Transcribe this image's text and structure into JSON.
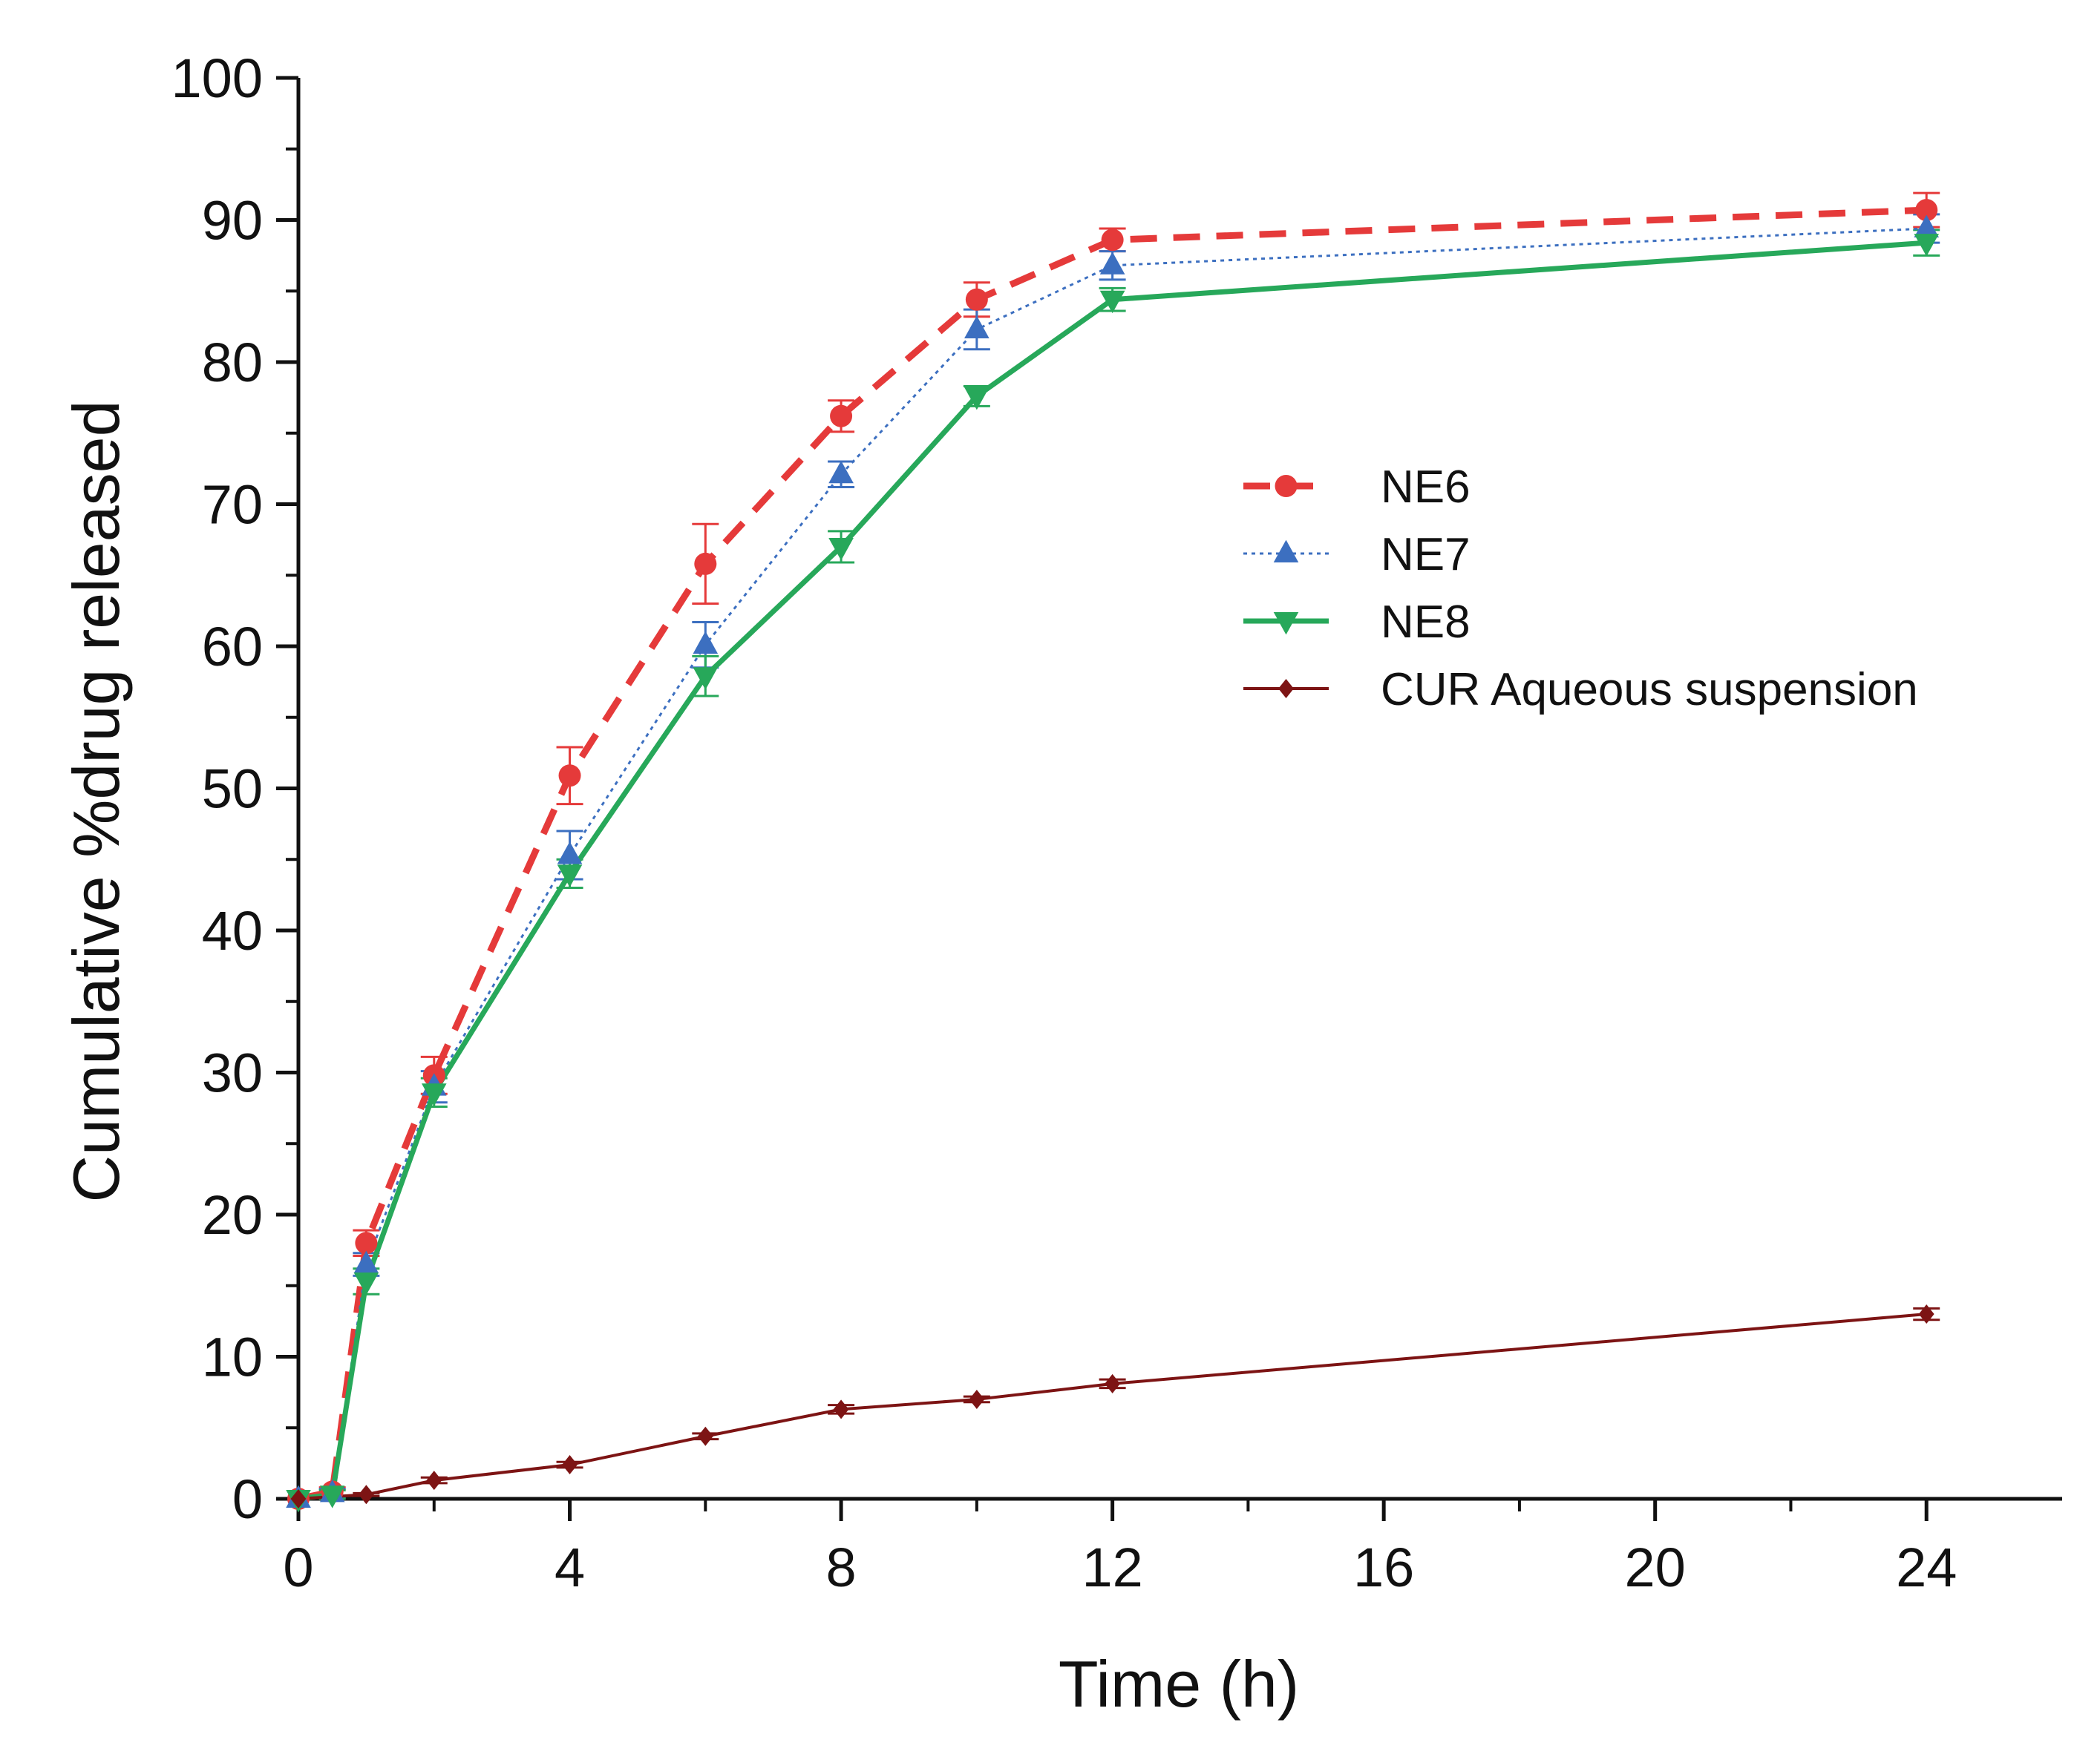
{
  "colors": {
    "NE6": "#e53a3a",
    "NE7": "#3c6fc0",
    "NE8": "#27a85a",
    "CUR": "#7d1414",
    "axis": "#111111"
  },
  "chart_data": {
    "type": "line",
    "title": "",
    "xlabel": "Time (h)",
    "ylabel": "Cumulative %drug released",
    "xlim": [
      0,
      26
    ],
    "ylim": [
      0,
      100
    ],
    "x_ticks": [
      0,
      4,
      8,
      12,
      16,
      20,
      24
    ],
    "x_tick_labels": [
      "0",
      "4",
      "8",
      "12",
      "16",
      "20",
      "24"
    ],
    "x_minor_ticks": [
      2,
      6,
      10,
      14,
      18,
      22
    ],
    "y_ticks": [
      0,
      10,
      20,
      30,
      40,
      50,
      60,
      70,
      80,
      90,
      100
    ],
    "y_tick_labels": [
      "0",
      "10",
      "20",
      "30",
      "40",
      "50",
      "60",
      "70",
      "80",
      "90",
      "100"
    ],
    "y_minor_ticks": [
      5,
      15,
      25,
      35,
      45,
      55,
      65,
      75,
      85,
      95
    ],
    "grid": false,
    "legend_position": "center-right",
    "series": [
      {
        "name": "NE6",
        "x": [
          0,
          0.5,
          1,
          2,
          4,
          6,
          8,
          10,
          12,
          24
        ],
        "values": [
          0,
          0.5,
          18.0,
          29.8,
          50.9,
          65.8,
          76.2,
          84.4,
          88.6,
          90.7
        ],
        "errors": [
          0,
          0.3,
          0.9,
          1.3,
          2.0,
          2.8,
          1.1,
          1.2,
          0.8,
          1.2
        ],
        "marker": "circle",
        "line_style": "dashed"
      },
      {
        "name": "NE7",
        "x": [
          0,
          0.5,
          1,
          2,
          4,
          6,
          8,
          10,
          12,
          24
        ],
        "values": [
          0,
          0.4,
          16.5,
          29.0,
          45.3,
          60.1,
          72.1,
          82.3,
          86.8,
          89.4
        ],
        "errors": [
          0,
          0.3,
          0.8,
          1.1,
          1.7,
          1.6,
          0.9,
          1.4,
          1.0,
          1.0
        ],
        "marker": "triangle-up",
        "line_style": "dotted"
      },
      {
        "name": "NE8",
        "x": [
          0,
          0.5,
          1,
          2,
          4,
          6,
          8,
          10,
          12,
          24
        ],
        "values": [
          0,
          0.3,
          15.3,
          28.6,
          44.0,
          57.9,
          67.0,
          77.6,
          84.4,
          88.4
        ],
        "errors": [
          0,
          0.3,
          0.9,
          1.0,
          1.0,
          1.4,
          1.1,
          0.7,
          0.8,
          0.9
        ],
        "marker": "triangle-down",
        "line_style": "solid"
      },
      {
        "name": "CUR Aqueous suspension",
        "x": [
          0,
          1,
          2,
          4,
          6,
          8,
          10,
          12,
          24
        ],
        "values": [
          0,
          0.3,
          1.3,
          2.4,
          4.4,
          6.3,
          7.0,
          8.1,
          13.0
        ],
        "errors": [
          0,
          0.1,
          0.2,
          0.2,
          0.2,
          0.3,
          0.2,
          0.3,
          0.4
        ],
        "marker": "diamond",
        "line_style": "solid-thin"
      }
    ]
  }
}
